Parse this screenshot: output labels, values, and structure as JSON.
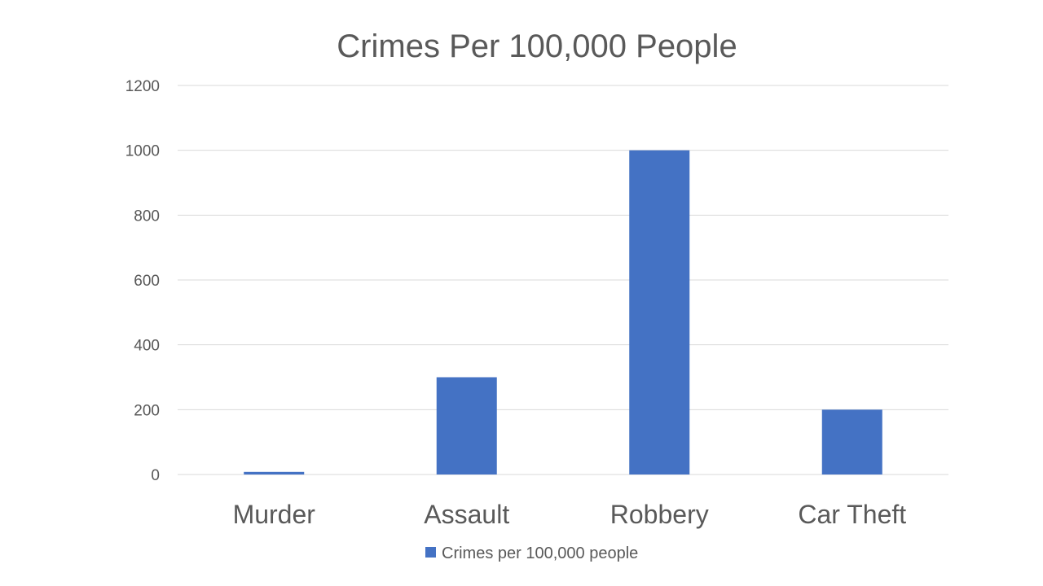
{
  "chart_data": {
    "type": "bar",
    "title": "Crimes Per 100,000 People",
    "categories": [
      "Murder",
      "Assault",
      "Robbery",
      "Car Theft"
    ],
    "series": [
      {
        "name": "Crimes per 100,000 people",
        "values": [
          8,
          300,
          1000,
          200
        ],
        "color": "#4472C4"
      }
    ],
    "ylim": [
      0,
      1200
    ],
    "yticks": [
      "0",
      "200",
      "400",
      "600",
      "800",
      "1000",
      "1200"
    ],
    "grid": true,
    "legend_position": "bottom"
  }
}
